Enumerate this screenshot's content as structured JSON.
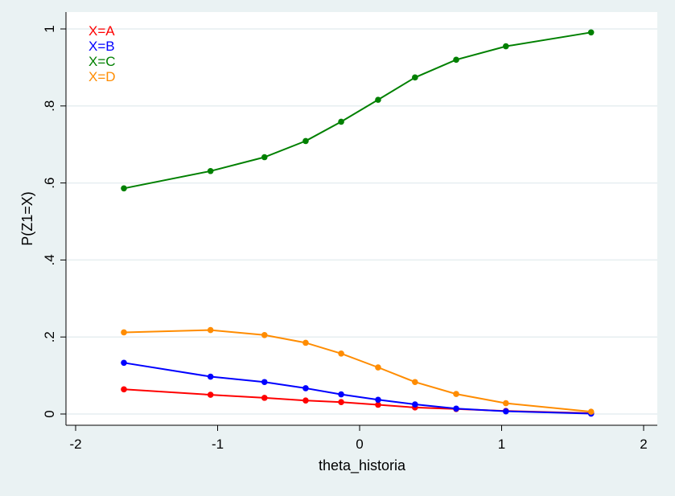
{
  "chart_data": {
    "type": "line",
    "title": "",
    "xlabel": "theta_historia",
    "ylabel": "P(Z1=X)",
    "xlim": [
      -2,
      2
    ],
    "ylim": [
      0,
      1
    ],
    "xticks": [
      -2,
      -1,
      0,
      1,
      2
    ],
    "xtick_labels": [
      "-2",
      "-1",
      "0",
      "1",
      "2"
    ],
    "yticks": [
      0,
      0.2,
      0.4,
      0.6,
      0.8,
      1
    ],
    "ytick_labels": [
      "0",
      ".2",
      ".4",
      ".6",
      ".8",
      "1"
    ],
    "grid": true,
    "legend_position": "top-left",
    "x": [
      -1.66,
      -1.05,
      -0.67,
      -0.38,
      -0.13,
      0.13,
      0.39,
      0.68,
      1.03,
      1.63
    ],
    "series": [
      {
        "name": "X=A",
        "color": "#ff0000",
        "values": [
          0.064,
          0.05,
          0.042,
          0.035,
          0.031,
          0.024,
          0.017,
          0.013,
          0.008,
          0.002
        ]
      },
      {
        "name": "X=B",
        "color": "#0000ff",
        "values": [
          0.133,
          0.097,
          0.083,
          0.067,
          0.051,
          0.037,
          0.025,
          0.014,
          0.007,
          0.001
        ]
      },
      {
        "name": "X=C",
        "color": "#008000",
        "values": [
          0.586,
          0.631,
          0.667,
          0.709,
          0.759,
          0.816,
          0.874,
          0.92,
          0.955,
          0.991
        ]
      },
      {
        "name": "X=D",
        "color": "#ff8c00",
        "values": [
          0.212,
          0.218,
          0.205,
          0.185,
          0.157,
          0.121,
          0.083,
          0.052,
          0.028,
          0.006
        ]
      }
    ]
  }
}
